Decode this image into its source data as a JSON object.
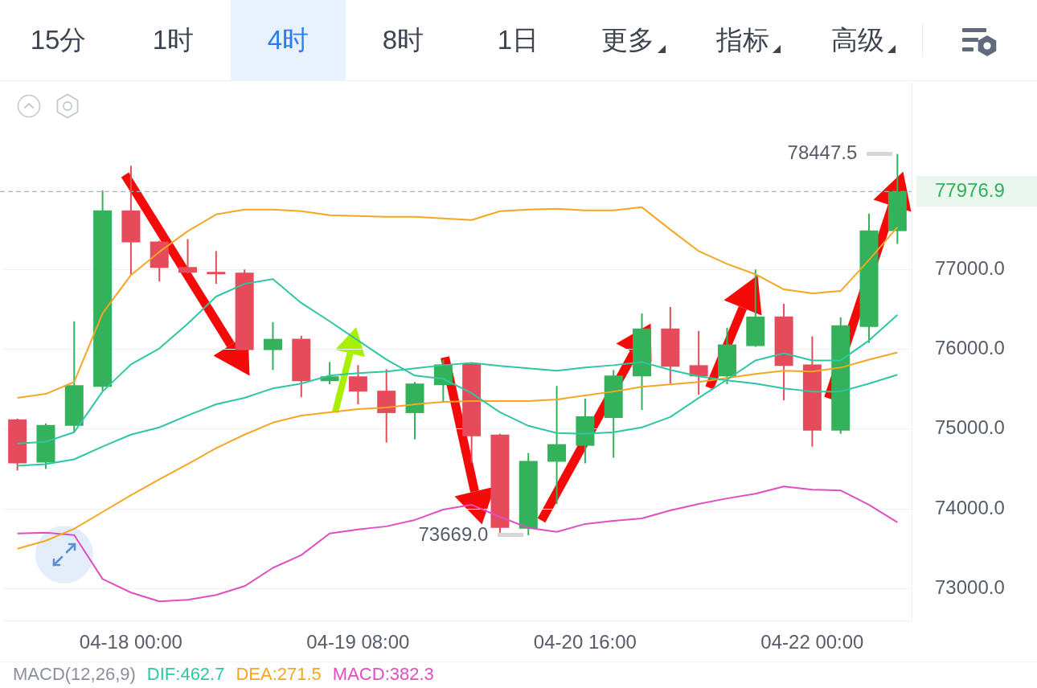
{
  "chart_data": {
    "type": "candlestick",
    "categories": [
      null,
      null,
      null,
      null,
      "04-18 00:00",
      null,
      null,
      null,
      null,
      null,
      null,
      null,
      "04-19 08:00",
      null,
      null,
      null,
      null,
      null,
      null,
      null,
      "04-20 16:00",
      null,
      null,
      null,
      null,
      null,
      null,
      null,
      "04-22 00:00",
      null,
      null,
      null
    ],
    "ohlc": [
      [
        75120,
        75130,
        74480,
        74570
      ],
      [
        74580,
        75070,
        74500,
        75050
      ],
      [
        75040,
        76350,
        74960,
        75550
      ],
      [
        75530,
        77990,
        75480,
        77740
      ],
      [
        77740,
        78300,
        76930,
        77340
      ],
      [
        77350,
        77360,
        76850,
        77020
      ],
      [
        77030,
        77380,
        76950,
        76960
      ],
      [
        76970,
        77230,
        76820,
        76940
      ],
      [
        76960,
        77000,
        75990,
        75990
      ],
      [
        75990,
        76340,
        75740,
        76130
      ],
      [
        76130,
        76170,
        75400,
        75600
      ],
      [
        75600,
        75840,
        75560,
        75660
      ],
      [
        75660,
        75800,
        75310,
        75470
      ],
      [
        75480,
        75750,
        74830,
        75200
      ],
      [
        75200,
        75590,
        74870,
        75570
      ],
      [
        75550,
        75870,
        75350,
        75810
      ],
      [
        75820,
        75830,
        74580,
        74910
      ],
      [
        74930,
        74940,
        73700,
        73760
      ],
      [
        73750,
        74700,
        73669,
        74600
      ],
      [
        74590,
        75540,
        74060,
        74810
      ],
      [
        74790,
        75380,
        74570,
        75160
      ],
      [
        75140,
        75740,
        74640,
        75670
      ],
      [
        75660,
        76450,
        75240,
        76260
      ],
      [
        76260,
        76530,
        75570,
        75780
      ],
      [
        75800,
        76230,
        75430,
        75660
      ],
      [
        75660,
        76270,
        75560,
        76060
      ],
      [
        76040,
        77000,
        76030,
        76410
      ],
      [
        76410,
        76570,
        75360,
        75790
      ],
      [
        75810,
        76160,
        74780,
        74980
      ],
      [
        74980,
        76400,
        74940,
        76300
      ],
      [
        76280,
        77700,
        76080,
        77490
      ],
      [
        77480,
        78447.5,
        77320,
        77976.9
      ]
    ],
    "colors": [
      "#e64b5b",
      "#33b15b",
      "#33b15b",
      "#33b15b",
      "#e64b5b",
      "#e64b5b",
      "#e64b5b",
      "#e64b5b",
      "#e64b5b",
      "#33b15b",
      "#e64b5b",
      "#33b15b",
      "#e64b5b",
      "#e64b5b",
      "#33b15b",
      "#33b15b",
      "#e64b5b",
      "#e64b5b",
      "#33b15b",
      "#33b15b",
      "#33b15b",
      "#33b15b",
      "#33b15b",
      "#e64b5b",
      "#e64b5b",
      "#33b15b",
      "#33b15b",
      "#e64b5b",
      "#e64b5b",
      "#33b15b",
      "#33b15b",
      "#33b15b"
    ],
    "series": [
      {
        "type": "line",
        "color": "#f5a623",
        "values": [
          75390,
          75440,
          75590,
          76450,
          76930,
          77220,
          77480,
          77690,
          77750,
          77750,
          77730,
          77680,
          77670,
          77660,
          77660,
          77640,
          77620,
          77730,
          77750,
          77760,
          77740,
          77740,
          77780,
          77500,
          77230,
          77070,
          76940,
          76750,
          76700,
          76730,
          77120,
          77530
        ]
      },
      {
        "type": "line",
        "color": "#2fc6a4",
        "values": [
          74820,
          74840,
          74960,
          75470,
          75810,
          76010,
          76320,
          76660,
          76820,
          76880,
          76580,
          76350,
          76110,
          75870,
          75670,
          75630,
          75450,
          75210,
          75040,
          74950,
          74940,
          74960,
          75020,
          75150,
          75390,
          75620,
          75860,
          75950,
          75860,
          75860,
          76110,
          76430
        ]
      },
      {
        "type": "line",
        "color": "#2fc6a4",
        "values": [
          74540,
          74560,
          74620,
          74780,
          74930,
          75020,
          75170,
          75310,
          75390,
          75510,
          75570,
          75670,
          75700,
          75720,
          75760,
          75800,
          75830,
          75790,
          75760,
          75730,
          75770,
          75800,
          75840,
          75740,
          75660,
          75610,
          75570,
          75510,
          75470,
          75470,
          75570,
          75680
        ]
      },
      {
        "type": "line",
        "color": "#f5a623",
        "values": [
          73500,
          73600,
          73750,
          73960,
          74170,
          74370,
          74560,
          74760,
          74930,
          75080,
          75170,
          75210,
          75250,
          75270,
          75310,
          75340,
          75350,
          75350,
          75350,
          75370,
          75420,
          75470,
          75530,
          75560,
          75590,
          75640,
          75690,
          75730,
          75720,
          75770,
          75870,
          75960
        ]
      },
      {
        "type": "line",
        "color": "#e04fc0",
        "values": [
          73690,
          73700,
          73670,
          73120,
          72950,
          72840,
          72860,
          72920,
          73030,
          73260,
          73420,
          73690,
          73740,
          73780,
          73860,
          73990,
          74050,
          73900,
          73760,
          73710,
          73810,
          73850,
          73880,
          73980,
          74060,
          74130,
          74190,
          74280,
          74240,
          74230,
          74050,
          73830
        ]
      }
    ],
    "ylim": [
      72600,
      79340
    ],
    "yticks": [
      {
        "value": 73000,
        "label": "73000.0"
      },
      {
        "value": 74000,
        "label": "74000.0"
      },
      {
        "value": 75000,
        "label": "75000.0"
      },
      {
        "value": 76000,
        "label": "76000.0"
      },
      {
        "value": 77000,
        "label": "77000.0"
      }
    ],
    "grid": "y",
    "ref_lines": [
      {
        "axis": "y",
        "value": 77976.9,
        "label": "77976.9",
        "color": "#a9b4c4",
        "line_style": "dashed"
      }
    ],
    "annotations": [
      "15分",
      "1时",
      "4时",
      "8时",
      "1日",
      "更多",
      "指标",
      "高级",
      "78447.5",
      "73669.0",
      "MACD(12,26,9)",
      "DIF:462.7",
      "DEA:271.5",
      "MACD:382.3"
    ]
  }
}
